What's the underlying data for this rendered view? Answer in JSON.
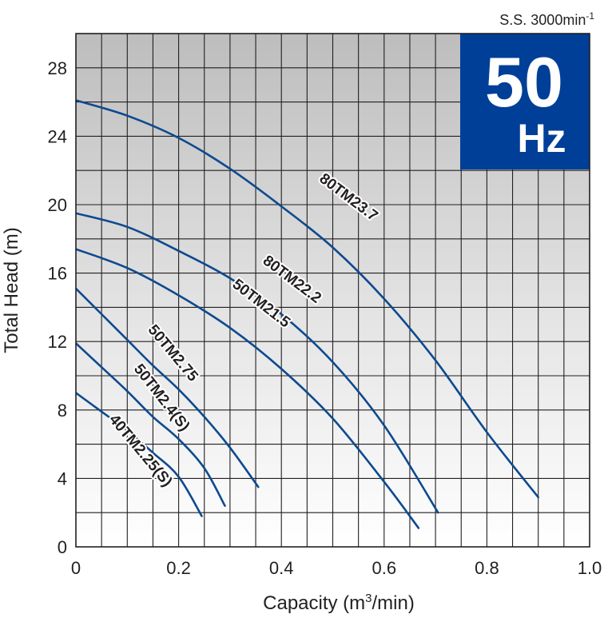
{
  "chart_data": {
    "type": "line",
    "title": "",
    "xlabel": "Capacity (m",
    "xlabel_sup": "3",
    "xlabel_tail": "/min)",
    "ylabel": "Total Head (m)",
    "xlim": [
      0,
      1.0
    ],
    "ylim": [
      0,
      30
    ],
    "x_ticks": [
      0,
      0.2,
      0.4,
      0.6,
      0.8,
      1.0
    ],
    "x_tick_labels": [
      "0",
      "0.2",
      "0.4",
      "0.6",
      "0.8",
      "1.0"
    ],
    "y_ticks": [
      0,
      4,
      8,
      12,
      16,
      20,
      24,
      28
    ],
    "y_tick_labels": [
      "0",
      "4",
      "8",
      "12",
      "16",
      "20",
      "24",
      "28"
    ],
    "grid": true,
    "x_minor_step": 0.05,
    "y_minor_step": 2,
    "speed_text": "S.S. 3000min",
    "speed_sup": "-1",
    "frequency_value": "50",
    "frequency_unit": "Hz",
    "frequency_badge_color": "#003f98",
    "curve_color": "#0d4a8f",
    "series": [
      {
        "name": "80TM23.7",
        "x": [
          0,
          0.1,
          0.2,
          0.3,
          0.4,
          0.5,
          0.6,
          0.7,
          0.8,
          0.9
        ],
        "y": [
          26.1,
          25.2,
          23.9,
          22.1,
          19.9,
          17.5,
          14.5,
          10.9,
          6.7,
          2.9
        ]
      },
      {
        "name": "80TM22.2",
        "x": [
          0,
          0.1,
          0.2,
          0.3,
          0.4,
          0.5,
          0.6,
          0.705
        ],
        "y": [
          19.5,
          18.7,
          17.3,
          15.7,
          13.6,
          10.8,
          7.1,
          2.0
        ]
      },
      {
        "name": "50TM21.5",
        "x": [
          0,
          0.1,
          0.2,
          0.3,
          0.4,
          0.5,
          0.6,
          0.667
        ],
        "y": [
          17.4,
          16.3,
          14.7,
          12.8,
          10.4,
          7.5,
          3.8,
          1.1
        ]
      },
      {
        "name": "50TM2.75",
        "x": [
          0,
          0.05,
          0.1,
          0.15,
          0.2,
          0.25,
          0.3,
          0.355
        ],
        "y": [
          15.1,
          13.6,
          12.1,
          10.6,
          9.2,
          7.6,
          5.8,
          3.5
        ]
      },
      {
        "name": "50TM2.4(S)",
        "x": [
          0,
          0.05,
          0.1,
          0.15,
          0.2,
          0.25,
          0.29
        ],
        "y": [
          11.9,
          10.5,
          9.1,
          7.6,
          6.3,
          4.6,
          2.4
        ]
      },
      {
        "name": "40TM2.25(S)",
        "x": [
          0,
          0.05,
          0.1,
          0.15,
          0.2,
          0.245
        ],
        "y": [
          9.0,
          7.9,
          6.8,
          5.5,
          4.1,
          1.8
        ]
      }
    ],
    "labels": [
      {
        "series": "80TM23.7",
        "x": 0.53,
        "y": 20.4,
        "rotate": 37
      },
      {
        "series": "80TM22.2",
        "x": 0.42,
        "y": 15.6,
        "rotate": 37
      },
      {
        "series": "50TM21.5",
        "x": 0.36,
        "y": 14.2,
        "rotate": 38
      },
      {
        "series": "50TM2.75",
        "x": 0.188,
        "y": 11.3,
        "rotate": 50
      },
      {
        "series": "50TM2.4(S)",
        "x": 0.166,
        "y": 8.7,
        "rotate": 52
      },
      {
        "series": "40TM2.25(S)",
        "x": 0.125,
        "y": 5.6,
        "rotate": 50
      }
    ]
  }
}
